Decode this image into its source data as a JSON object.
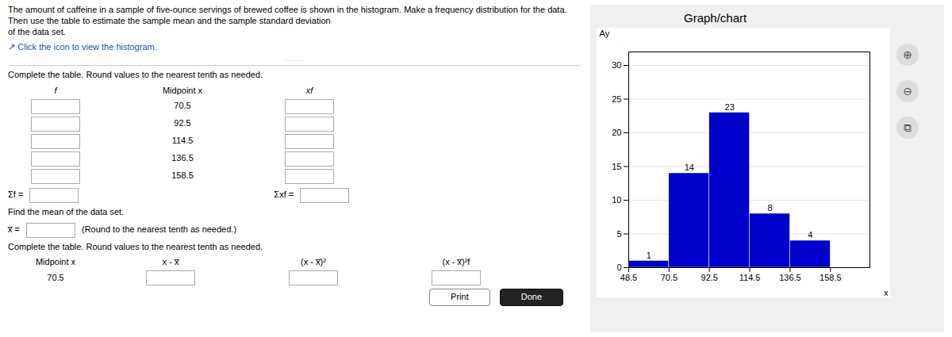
{
  "chart_data": {
    "type": "histogram",
    "title": "Graph/chart",
    "bins": [
      48.5,
      70.5,
      92.5,
      114.5,
      136.5,
      158.5
    ],
    "values": [
      1,
      14,
      23,
      8,
      4
    ],
    "color": "#0000CC",
    "x_label": "x",
    "y_label": "Ay",
    "xlim": [
      48.5,
      180
    ],
    "xticks": [
      48.5,
      70.5,
      92.5,
      114.5,
      136.5,
      158.5
    ],
    "ylim": [
      0,
      32
    ],
    "yticks": [
      0,
      5,
      10,
      15,
      20,
      25,
      30
    ],
    "grid": true,
    "data_labels": true,
    "annotations": [
      "The amount of caffeine in a sample of five-ounce servings of brewed coffee is shown in the histogram. Make a frequency distribution for the data. Then use the table to estimate the sample mean and the sample standard deviation\nof the data set.",
      "↗ Click the icon to view the histogram.",
      ". . . . .",
      "Complete the table. Round values to the nearest tenth as needed.",
      "f",
      "Midpoint x",
      "xf",
      "70.5",
      "92.5",
      "114.5",
      "136.5",
      "158.5",
      "Σf =",
      "Σxf =",
      "Find the mean of the data set.",
      "x̅ =",
      "(Round to the nearest tenth as needed.)",
      "Complete the table. Round values to the nearest tenth as needed.",
      "Midpoint x",
      "x - x̅",
      "(x - x̅)²",
      "(x - x̅)²f",
      "70.5",
      "Print",
      "Done",
      "⊕",
      "⊖",
      "⧉"
    ]
  }
}
